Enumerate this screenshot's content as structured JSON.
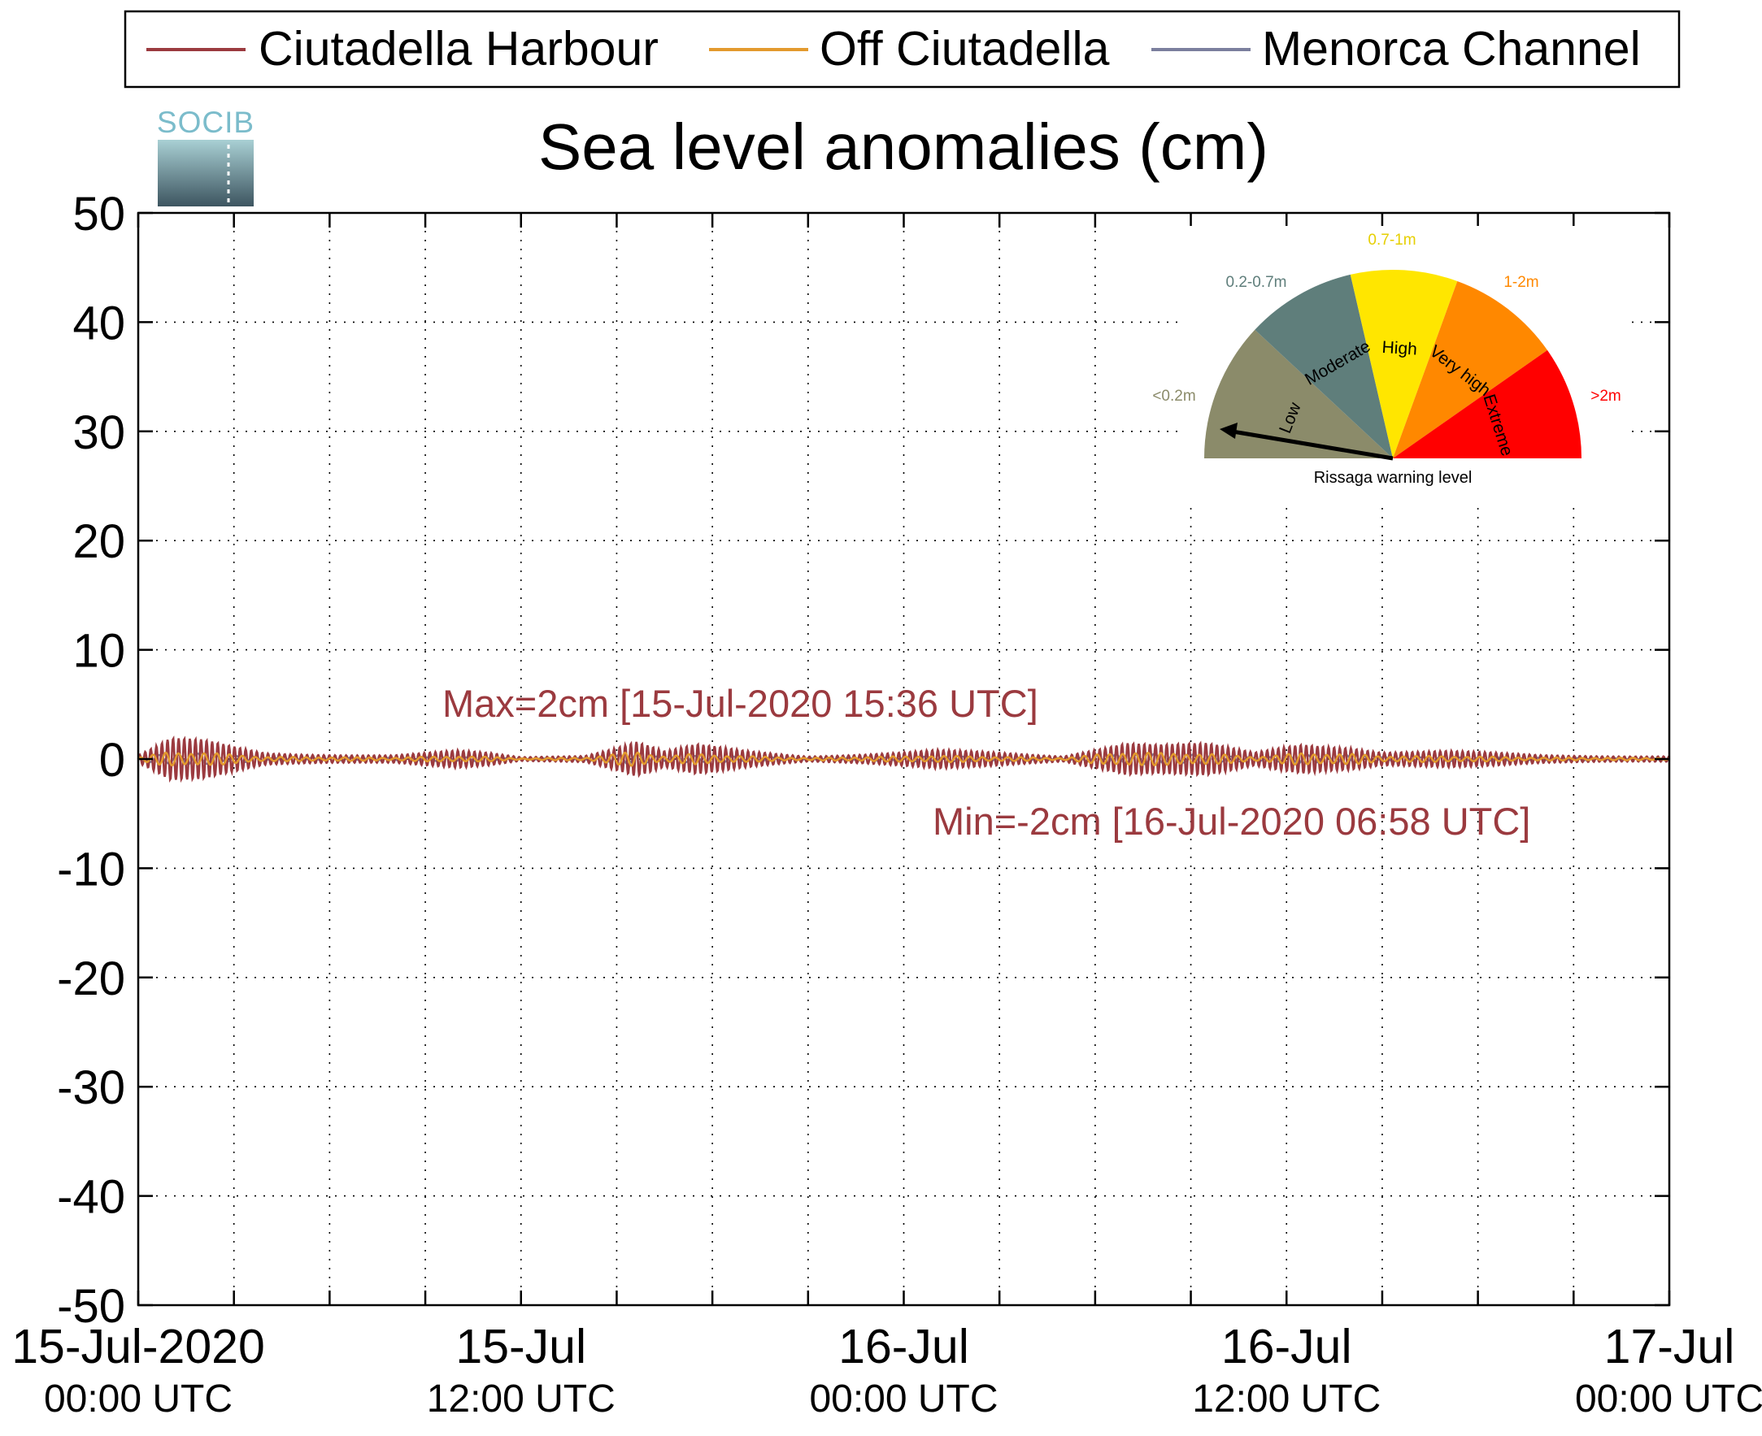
{
  "chart_data": {
    "type": "line",
    "title": "Sea level anomalies (cm)",
    "xlabel": "",
    "ylabel": "",
    "ylim": [
      -50,
      50
    ],
    "yticks": [
      50,
      40,
      30,
      20,
      10,
      0,
      -10,
      -20,
      -30,
      -40,
      -50
    ],
    "xlim": [
      "2020-07-15 00:00",
      "2020-07-17 00:00"
    ],
    "xticks": [
      {
        "line1": "15-Jul-2020",
        "line2": "00:00 UTC",
        "t": "2020-07-15 00:00"
      },
      {
        "line1": "15-Jul",
        "line2": "12:00 UTC",
        "t": "2020-07-15 12:00"
      },
      {
        "line1": "16-Jul",
        "line2": "00:00 UTC",
        "t": "2020-07-16 00:00"
      },
      {
        "line1": "16-Jul",
        "line2": "12:00 UTC",
        "t": "2020-07-16 12:00"
      },
      {
        "line1": "17-Jul",
        "line2": "00:00 UTC",
        "t": "2020-07-17 00:00"
      }
    ],
    "grid": true,
    "legend_position": "top",
    "series": [
      {
        "name": "Ciutadella Harbour",
        "color": "#9b3a3f",
        "envelope_cm": [
          {
            "t": "2020-07-15 00:00",
            "amp": 0.4
          },
          {
            "t": "2020-07-15 01:00",
            "amp": 2.0
          },
          {
            "t": "2020-07-15 02:00",
            "amp": 1.8
          },
          {
            "t": "2020-07-15 03:00",
            "amp": 1.2
          },
          {
            "t": "2020-07-15 04:00",
            "amp": 0.6
          },
          {
            "t": "2020-07-15 06:00",
            "amp": 0.5
          },
          {
            "t": "2020-07-15 08:00",
            "amp": 0.4
          },
          {
            "t": "2020-07-15 10:00",
            "amp": 0.8
          },
          {
            "t": "2020-07-15 11:00",
            "amp": 0.6
          },
          {
            "t": "2020-07-15 12:00",
            "amp": 0.2
          },
          {
            "t": "2020-07-15 14:00",
            "amp": 0.4
          },
          {
            "t": "2020-07-15 15:36",
            "amp": 2.0
          },
          {
            "t": "2020-07-15 16:30",
            "amp": 0.8
          },
          {
            "t": "2020-07-15 17:30",
            "amp": 1.4
          },
          {
            "t": "2020-07-15 19:00",
            "amp": 0.8
          },
          {
            "t": "2020-07-15 21:00",
            "amp": 0.3
          },
          {
            "t": "2020-07-15 23:00",
            "amp": 0.6
          },
          {
            "t": "2020-07-16 01:00",
            "amp": 0.9
          },
          {
            "t": "2020-07-16 03:00",
            "amp": 0.6
          },
          {
            "t": "2020-07-16 05:00",
            "amp": 0.3
          },
          {
            "t": "2020-07-16 06:58",
            "amp": 2.0
          },
          {
            "t": "2020-07-16 08:00",
            "amp": 1.6
          },
          {
            "t": "2020-07-16 09:30",
            "amp": 1.5
          },
          {
            "t": "2020-07-16 11:00",
            "amp": 0.6
          },
          {
            "t": "2020-07-16 12:30",
            "amp": 1.6
          },
          {
            "t": "2020-07-16 14:00",
            "amp": 1.4
          },
          {
            "t": "2020-07-16 15:00",
            "amp": 0.8
          },
          {
            "t": "2020-07-16 17:00",
            "amp": 0.8
          },
          {
            "t": "2020-07-16 20:00",
            "amp": 0.4
          },
          {
            "t": "2020-07-17 00:00",
            "amp": 0.3
          }
        ]
      },
      {
        "name": "Off Ciutadella",
        "color": "#e39a2d"
      },
      {
        "name": "Menorca Channel",
        "color": "#7b7f9e"
      }
    ],
    "annotations": [
      {
        "text": "Max=2cm [15-Jul-2020 15:36 UTC]",
        "t": "2020-07-15 15:36",
        "value": 2
      },
      {
        "text": "Min=-2cm [16-Jul-2020 06:58 UTC]",
        "t": "2020-07-16 06:58",
        "value": -2
      }
    ],
    "annotation_color": "#9b3a3f"
  },
  "logo": {
    "text": "SOCIB"
  },
  "gauge": {
    "caption": "Rissaga warning level",
    "sectors": [
      {
        "label": "Low",
        "range": "<0.2m",
        "color": "#8b8b6a",
        "range_color": "#8b8b6a"
      },
      {
        "label": "Moderate",
        "range": "0.2-0.7m",
        "color": "#5f7e7b",
        "range_color": "#5f7e7b"
      },
      {
        "label": "High",
        "range": "0.7-1m",
        "color": "#ffe600",
        "range_color": "#e6cf00"
      },
      {
        "label": "Very high",
        "range": "1-2m",
        "color": "#ff8800",
        "range_color": "#ff8800"
      },
      {
        "label": "Extreme",
        "range": ">2m",
        "color": "#ff0000",
        "range_color": "#ff0000"
      }
    ],
    "current_level": "Low"
  }
}
